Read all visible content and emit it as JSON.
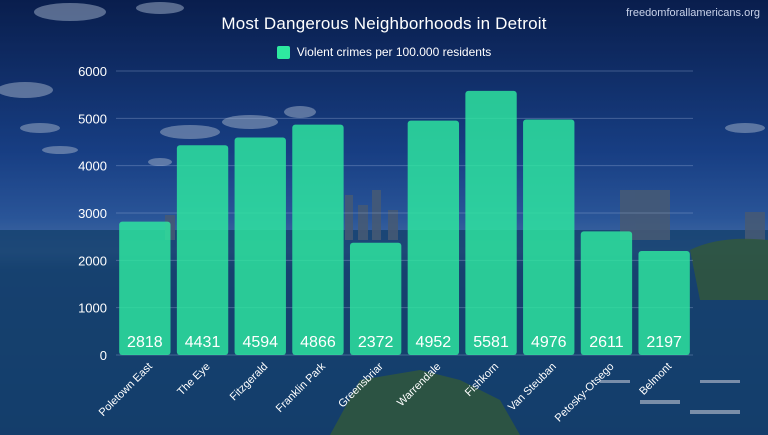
{
  "source_watermark": "freedomforallamericans.org",
  "colors": {
    "bar": "#2ee9a0",
    "text": "#ffffff",
    "gridline": "#9fb3d6"
  },
  "chart_data": {
    "type": "bar",
    "title": "Most Dangerous Neighborhoods in Detroit",
    "legend_position": "top-center",
    "grid": true,
    "xlabel": "",
    "ylabel": "",
    "ylim": [
      0,
      6000
    ],
    "yticks": [
      "0",
      "1000",
      "2000",
      "3000",
      "4000",
      "5000",
      "6000"
    ],
    "categories": [
      "Poletown East",
      "The Eye",
      "Fitzgerald",
      "Franklin Park",
      "Greensbriar",
      "Warrendale",
      "Fishkorn",
      "Van Steuban",
      "Petosky-Otsego",
      "Belmont"
    ],
    "series": [
      {
        "name": "Violent crimes per 100.000 residents",
        "values": [
          2818,
          4431,
          4594,
          4866,
          2372,
          4952,
          5581,
          4976,
          2611,
          2197
        ],
        "labels": [
          "2818",
          "4431",
          "4594",
          "4866",
          "2372",
          "4952",
          "5581",
          "4976",
          "2611",
          "2197"
        ]
      }
    ]
  }
}
